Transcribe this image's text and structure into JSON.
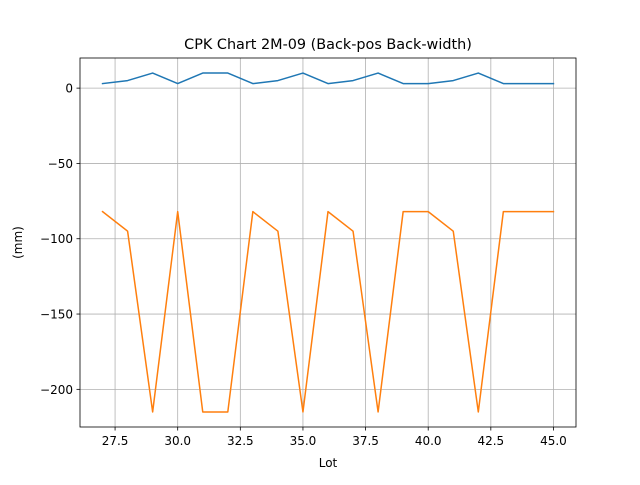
{
  "chart_data": {
    "type": "line",
    "title": "CPK Chart 2M-09 (Back-pos Back-width)",
    "xlabel": "Lot",
    "ylabel": "(mm)",
    "xlim": [
      26.1,
      45.9
    ],
    "ylim": [
      -225,
      20
    ],
    "grid": true,
    "x": [
      27,
      28,
      29,
      30,
      31,
      32,
      33,
      34,
      35,
      36,
      37,
      38,
      39,
      40,
      41,
      42,
      43,
      44,
      45
    ],
    "series": [
      {
        "color": "#1f77b4",
        "values": [
          3,
          5,
          10,
          3,
          10,
          10,
          3,
          5,
          10,
          3,
          5,
          10,
          3,
          3,
          5,
          10,
          3,
          3,
          3
        ]
      },
      {
        "color": "#ff7f0e",
        "values": [
          -82,
          -95,
          -215,
          -82,
          -215,
          -215,
          -82,
          -95,
          -215,
          -82,
          -95,
          -215,
          -82,
          -82,
          -95,
          -215,
          -82,
          -82,
          -82
        ]
      }
    ],
    "x_ticks": [
      27.5,
      30.0,
      32.5,
      35.0,
      37.5,
      40.0,
      42.5,
      45.0
    ],
    "x_tick_labels": [
      "27.5",
      "30.0",
      "32.5",
      "35.0",
      "37.5",
      "40.0",
      "42.5",
      "45.0"
    ],
    "y_ticks": [
      0,
      -50,
      -100,
      -150,
      -200
    ],
    "y_tick_labels": [
      "0",
      "−50",
      "−100",
      "−150",
      "−200"
    ]
  }
}
